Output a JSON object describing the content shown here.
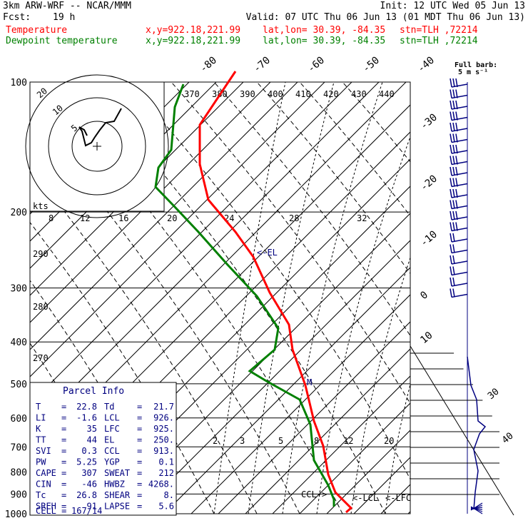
{
  "header": {
    "model": "3km ARW-WRF -- NCAR/MMM",
    "init": "Init: 12 UTC Wed 05 Jun 13",
    "fcst_label": "Fcst:",
    "fcst_value": "19 h",
    "valid": "Valid: 07 UTC Thu 06 Jun 13 (01 MDT Thu 06 Jun 13)",
    "temp_name": "Temperature",
    "dew_name": "Dewpoint temperature",
    "xy": "x,y=922.18,221.99",
    "latlon": "lat,lon= 30.39, -84.35",
    "stn": "stn=TLH ,72214"
  },
  "colors": {
    "temperature": "#ff0000",
    "dewpoint": "#008000",
    "annotation": "#000080"
  },
  "chart_data": {
    "type": "line",
    "title": "",
    "pressure_levels": [
      100,
      200,
      300,
      400,
      500,
      600,
      700,
      800,
      900,
      1000
    ],
    "isotherm_top_labels": [
      "-80",
      "-70",
      "-60",
      "-50",
      "-40"
    ],
    "isotherm_right_labels": [
      "-30",
      "-20",
      "-10",
      "0",
      "10"
    ],
    "theta_labels": [
      "370",
      "380",
      "390",
      "400",
      "410",
      "420",
      "430",
      "440"
    ],
    "theta_left_labels": [
      "290",
      "280",
      "270"
    ],
    "mixing_ratio_labels": [
      "2",
      "3",
      "5",
      "8",
      "12",
      "20"
    ],
    "hodo_axis_labels": [
      "8",
      "12",
      "16",
      "20",
      "24",
      "28",
      "32"
    ],
    "hodo_rings": [
      "5",
      "10",
      "20"
    ],
    "hodo_unit": "kts",
    "barb_legend": [
      "Full barb:",
      "5 m s⁻¹"
    ],
    "wind_profile_labels": [
      "30",
      "40"
    ],
    "annotations": {
      "el": "<-EL",
      "ccl": "CCL->",
      "lcl": "<-LCL",
      "lfc": "<-LFC"
    },
    "series": [
      {
        "name": "Temperature",
        "points": [
          [
            330,
            100
          ],
          [
            280,
            175
          ],
          [
            280,
            230
          ],
          [
            292,
            280
          ],
          [
            330,
            325
          ],
          [
            355,
            360
          ],
          [
            378,
            410
          ],
          [
            405,
            455
          ],
          [
            410,
            490
          ],
          [
            428,
            540
          ],
          [
            440,
            590
          ],
          [
            453,
            625
          ],
          [
            460,
            665
          ],
          [
            470,
            690
          ],
          [
            492,
            712
          ],
          [
            485,
            718
          ]
        ]
      },
      {
        "name": "Dewpoint temperature",
        "points": [
          [
            257,
            118
          ],
          [
            245,
            150
          ],
          [
            240,
            210
          ],
          [
            222,
            235
          ],
          [
            218,
            262
          ],
          [
            245,
            290
          ],
          [
            278,
            325
          ],
          [
            318,
            370
          ],
          [
            360,
            415
          ],
          [
            390,
            460
          ],
          [
            385,
            490
          ],
          [
            350,
            520
          ],
          [
            375,
            535
          ],
          [
            420,
            560
          ],
          [
            435,
            595
          ],
          [
            440,
            645
          ],
          [
            460,
            680
          ],
          [
            468,
            700
          ],
          [
            468,
            710
          ]
        ]
      }
    ]
  },
  "parcel_info": {
    "title": "Parcel Info",
    "rows": [
      {
        "l1": "T",
        "v1": "22.8",
        "l2": "Td",
        "v2": "21.7"
      },
      {
        "l1": "LI",
        "v1": "-1.6",
        "l2": "LCL",
        "v2": "926."
      },
      {
        "l1": "K",
        "v1": "35",
        "l2": "LFC",
        "v2": "925."
      },
      {
        "l1": "TT",
        "v1": "44",
        "l2": "EL",
        "v2": "250."
      },
      {
        "l1": "SVI",
        "v1": "0.3",
        "l2": "CCL",
        "v2": "913."
      },
      {
        "l1": "PW",
        "v1": "5.25",
        "l2": "YGP",
        "v2": "0.1"
      },
      {
        "l1": "CAPE",
        "v1": "307",
        "l2": "SWEAT",
        "v2": "212"
      },
      {
        "l1": "CIN",
        "v1": "-46",
        "l2": "HWBZ",
        "v2": "4268."
      },
      {
        "l1": "Tc",
        "v1": "26.8",
        "l2": "SHEAR",
        "v2": "8."
      },
      {
        "l1": "SREH",
        "v1": "91",
        "l2": "LAPSE",
        "v2": "5.6"
      }
    ],
    "cell_label": "CELL =",
    "cell_value": "167/14"
  }
}
